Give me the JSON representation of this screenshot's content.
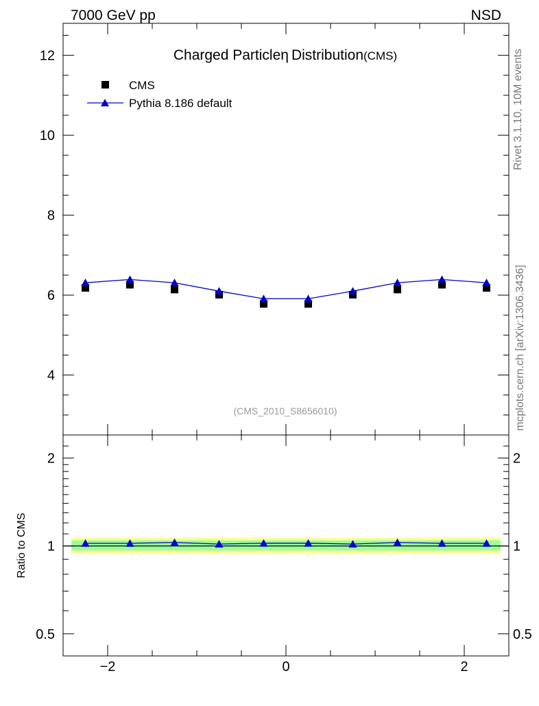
{
  "header": {
    "energy_label": "7000 GeV pp",
    "process_label": "NSD"
  },
  "side_labels": {
    "rivet": "Rivet 3.1.10,  10M events",
    "mcplots": "mcplots.cern.ch [arXiv:1306.3436]"
  },
  "chart_data": [
    {
      "type": "scatter",
      "title": "Charged Particle",
      "title_symbol": "η",
      "title_rest": "Distribution",
      "title_suffix": "(CMS)",
      "watermark": "(CMS_2010_S8656010)",
      "xlabel": "",
      "ylabel": "",
      "xlim": [
        -2.5,
        2.5
      ],
      "ylim": [
        2.5,
        12.8
      ],
      "yticks": [
        4,
        6,
        8,
        10,
        12
      ],
      "x": [
        -2.25,
        -1.75,
        -1.25,
        -0.75,
        -0.25,
        0.25,
        0.75,
        1.25,
        1.75,
        2.25
      ],
      "legend_position": "top-left",
      "series": [
        {
          "name": "CMS",
          "style": "markers",
          "marker": "square",
          "color": "#000000",
          "values": [
            6.18,
            6.26,
            6.14,
            6.01,
            5.78,
            5.78,
            6.01,
            6.14,
            6.26,
            6.18
          ]
        },
        {
          "name": "Pythia 8.186 default",
          "style": "line+markers",
          "marker": "triangle",
          "color": "#0000cc",
          "values": [
            6.31,
            6.39,
            6.31,
            6.1,
            5.91,
            5.91,
            6.1,
            6.31,
            6.39,
            6.31
          ]
        }
      ]
    },
    {
      "type": "line",
      "ylabel": "Ratio to CMS",
      "xlim": [
        -2.5,
        2.5
      ],
      "ylim": [
        0.42,
        2.4
      ],
      "yscale": "log",
      "yticks": [
        0.5,
        1,
        2
      ],
      "xticks": [
        -2,
        0,
        2
      ],
      "x": [
        -2.25,
        -1.75,
        -1.25,
        -0.75,
        -0.25,
        0.25,
        0.75,
        1.25,
        1.75,
        2.25
      ],
      "bands": [
        {
          "level": "outer",
          "color": "#ffff99",
          "lower": 0.938,
          "upper": 1.07
        },
        {
          "level": "inner",
          "color": "#99ff99",
          "lower": 0.965,
          "upper": 1.045
        }
      ],
      "series": [
        {
          "name": "Pythia 8.186 default",
          "color": "#0000cc",
          "marker": "triangle",
          "values": [
            1.021,
            1.021,
            1.028,
            1.015,
            1.022,
            1.022,
            1.015,
            1.028,
            1.021,
            1.021
          ]
        }
      ]
    }
  ]
}
